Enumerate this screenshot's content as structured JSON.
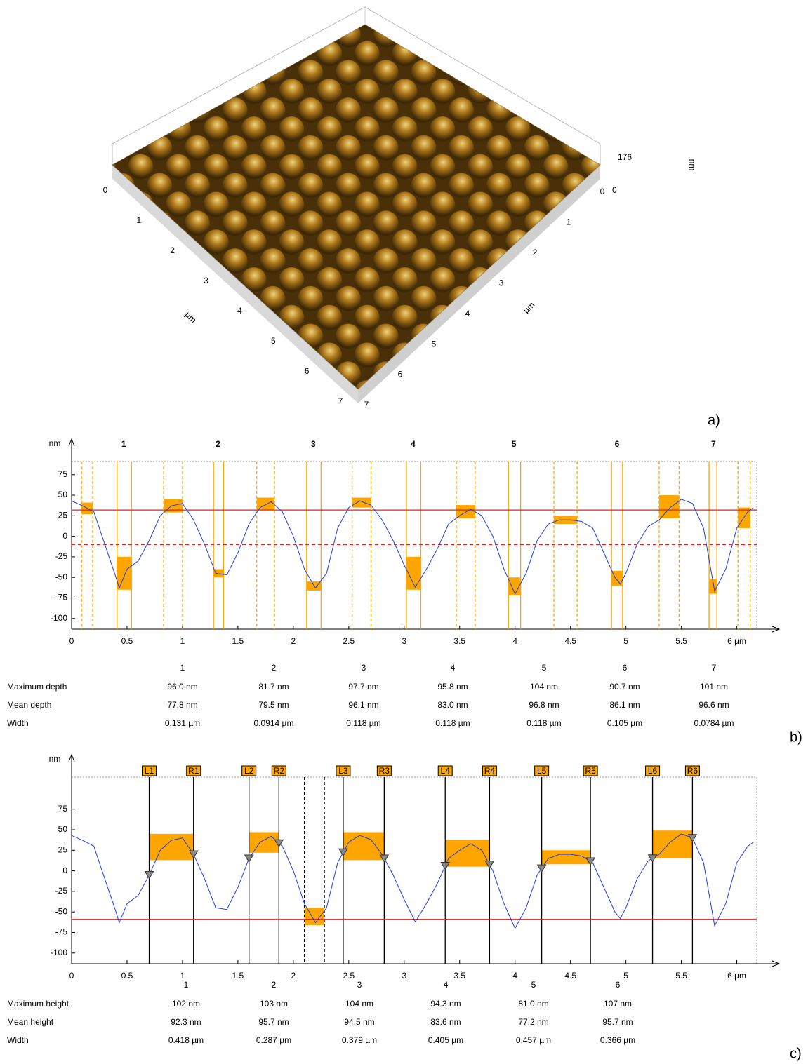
{
  "panel_a": {
    "label": "a)",
    "left_axis_ticks": [
      "0",
      "1",
      "2",
      "3",
      "4",
      "5",
      "6",
      "7"
    ],
    "left_axis_unit": "µm",
    "right_axis_ticks": [
      "0",
      "1",
      "2",
      "3",
      "4",
      "5",
      "6",
      "7"
    ],
    "right_axis_unit": "µm",
    "z_ticks": [
      "176",
      "0"
    ],
    "z_unit": "nm"
  },
  "chart_data": [
    {
      "type": "line",
      "panel_label": "b)",
      "y_unit": "nm",
      "color": "#1f3fdf",
      "x": [
        0,
        0.1,
        0.2,
        0.3,
        0.4,
        0.43,
        0.5,
        0.6,
        0.7,
        0.8,
        0.9,
        1,
        1.1,
        1.2,
        1.3,
        1.4,
        1.5,
        1.6,
        1.7,
        1.8,
        1.9,
        2,
        2.1,
        2.2,
        2.3,
        2.4,
        2.5,
        2.6,
        2.7,
        2.8,
        2.9,
        3,
        3.1,
        3.2,
        3.3,
        3.4,
        3.5,
        3.6,
        3.7,
        3.8,
        3.9,
        4,
        4.1,
        4.2,
        4.3,
        4.4,
        4.5,
        4.6,
        4.7,
        4.8,
        4.9,
        4.95,
        5,
        5.1,
        5.2,
        5.3,
        5.4,
        5.5,
        5.6,
        5.7,
        5.8,
        5.9,
        6,
        6.1,
        6.15
      ],
      "values": [
        43,
        37,
        30,
        -10,
        -50,
        -63,
        -40,
        -30,
        -5,
        25,
        37,
        40,
        20,
        -10,
        -45,
        -47,
        -20,
        15,
        35,
        42,
        30,
        0,
        -40,
        -63,
        -45,
        10,
        35,
        43,
        38,
        20,
        -5,
        -35,
        -62,
        -40,
        -15,
        15,
        25,
        33,
        25,
        0,
        -40,
        -70,
        -45,
        -5,
        15,
        20,
        20,
        18,
        10,
        -20,
        -50,
        -58,
        -45,
        -10,
        12,
        20,
        35,
        45,
        40,
        10,
        -67,
        -40,
        10,
        30,
        35
      ],
      "xlim": [
        0,
        6.18
      ],
      "ylim": [
        -113,
        91
      ],
      "xticks": [
        0,
        0.5,
        1,
        1.5,
        2,
        2.5,
        3,
        3.5,
        4,
        4.5,
        5,
        5.5,
        {
          "value": 6,
          "label": "6 µm"
        }
      ],
      "yticks": [
        75,
        50,
        25,
        0,
        -25,
        -50,
        -75,
        -100
      ],
      "hlines": [
        {
          "value": 32,
          "color": "#e02020",
          "style": "solid"
        },
        {
          "value": -10,
          "color": "#e02020",
          "style": "dashed"
        }
      ],
      "zone_fill": "#ffa500",
      "edge_color": "#ffa500",
      "edge_markers": false,
      "annotation_style": "plain",
      "zones": [
        {
          "x": [
            0.09,
            0.19
          ],
          "y": [
            27,
            41
          ],
          "edge": "dashed"
        },
        {
          "x": [
            0.83,
            1.0
          ],
          "y": [
            29,
            45
          ],
          "edge": "dashed"
        },
        {
          "x": [
            1.67,
            1.83
          ],
          "y": [
            32,
            47
          ],
          "edge": "dashed"
        },
        {
          "x": [
            2.53,
            2.7
          ],
          "y": [
            35,
            47
          ],
          "edge": "dashed"
        },
        {
          "x": [
            3.47,
            3.64
          ],
          "y": [
            22,
            38
          ],
          "edge": "dashed"
        },
        {
          "x": [
            4.35,
            4.56
          ],
          "y": [
            15,
            25
          ],
          "edge": "dashed"
        },
        {
          "x": [
            5.3,
            5.48
          ],
          "y": [
            22,
            50
          ],
          "edge": "dashed"
        },
        {
          "x": [
            6.01,
            6.12
          ],
          "y": [
            10,
            35
          ],
          "edge": "dashed"
        },
        {
          "x": [
            0.41,
            0.54
          ],
          "y": [
            -65,
            -25
          ],
          "edge": "solid"
        },
        {
          "x": [
            1.28,
            1.37
          ],
          "y": [
            -50,
            -40
          ],
          "edge": "solid"
        },
        {
          "x": [
            2.12,
            2.25
          ],
          "y": [
            -66,
            -55
          ],
          "edge": "solid"
        },
        {
          "x": [
            3.02,
            3.15
          ],
          "y": [
            -65,
            -25
          ],
          "edge": "solid"
        },
        {
          "x": [
            3.94,
            4.05
          ],
          "y": [
            -72,
            -50
          ],
          "edge": "solid"
        },
        {
          "x": [
            4.87,
            4.97
          ],
          "y": [
            -60,
            -42
          ],
          "edge": "solid"
        },
        {
          "x": [
            5.75,
            5.82
          ],
          "y": [
            -70,
            -52
          ],
          "edge": "solid"
        }
      ],
      "annotations": [
        {
          "text": "1",
          "x": 0.47
        },
        {
          "text": "2",
          "x": 1.32
        },
        {
          "text": "3",
          "x": 2.18
        },
        {
          "text": "4",
          "x": 3.08
        },
        {
          "text": "5",
          "x": 3.99
        },
        {
          "text": "6",
          "x": 4.92
        },
        {
          "text": "7",
          "x": 5.79
        }
      ],
      "table": {
        "columns": [
          "1",
          "2",
          "3",
          "4",
          "5",
          "6",
          "7"
        ],
        "rows": [
          [
            "Maximum depth",
            "96.0 nm",
            "81.7 nm",
            "97.7 nm",
            "95.8 nm",
            "104 nm",
            "90.7 nm",
            "101 nm"
          ],
          [
            "Mean depth",
            "77.8 nm",
            "79.5 nm",
            "96.1 nm",
            "83.0 nm",
            "96.8 nm",
            "86.1 nm",
            "96.6 nm"
          ],
          [
            "Width",
            "0.131 µm",
            "0.0914 µm",
            "0.118 µm",
            "0.118 µm",
            "0.118 µm",
            "0.105 µm",
            "0.0784 µm"
          ]
        ]
      }
    },
    {
      "type": "line",
      "panel_label": "c)",
      "y_unit": "nm",
      "color": "#1f3fdf",
      "x": [
        0,
        0.1,
        0.2,
        0.3,
        0.4,
        0.43,
        0.5,
        0.6,
        0.7,
        0.8,
        0.9,
        1,
        1.1,
        1.2,
        1.3,
        1.4,
        1.5,
        1.6,
        1.7,
        1.8,
        1.9,
        2,
        2.1,
        2.2,
        2.3,
        2.4,
        2.5,
        2.6,
        2.7,
        2.8,
        2.9,
        3,
        3.1,
        3.2,
        3.3,
        3.4,
        3.5,
        3.6,
        3.7,
        3.8,
        3.9,
        4,
        4.1,
        4.2,
        4.3,
        4.4,
        4.5,
        4.6,
        4.7,
        4.8,
        4.9,
        4.95,
        5,
        5.1,
        5.2,
        5.3,
        5.4,
        5.5,
        5.6,
        5.7,
        5.8,
        5.9,
        6,
        6.1,
        6.15
      ],
      "values": [
        43,
        37,
        30,
        -10,
        -50,
        -63,
        -40,
        -30,
        -5,
        25,
        37,
        40,
        20,
        -10,
        -45,
        -47,
        -20,
        15,
        35,
        42,
        30,
        0,
        -40,
        -63,
        -45,
        10,
        35,
        43,
        38,
        20,
        -5,
        -35,
        -62,
        -40,
        -15,
        15,
        25,
        33,
        25,
        0,
        -40,
        -70,
        -45,
        -5,
        15,
        20,
        20,
        18,
        10,
        -20,
        -50,
        -58,
        -45,
        -10,
        12,
        20,
        35,
        45,
        40,
        10,
        -67,
        -40,
        10,
        30,
        35
      ],
      "xlim": [
        0,
        6.18
      ],
      "ylim": [
        -113,
        114
      ],
      "xticks": [
        0,
        0.5,
        1,
        1.5,
        2,
        2.5,
        3,
        3.5,
        4,
        4.5,
        5,
        5.5,
        {
          "value": 6,
          "label": "6 µm"
        }
      ],
      "yticks": [
        75,
        50,
        25,
        0,
        -25,
        -50,
        -75,
        -100
      ],
      "hlines": [
        {
          "value": -59,
          "color": "#e02020",
          "style": "solid"
        }
      ],
      "zone_fill": "#ffa500",
      "edge_color": "#000000",
      "edge_markers": true,
      "annotation_style": "box",
      "zones": [
        {
          "x": [
            0.7,
            1.1
          ],
          "y": [
            13,
            45
          ],
          "edge": "solid"
        },
        {
          "x": [
            1.6,
            1.87
          ],
          "y": [
            22,
            47
          ],
          "edge": "solid"
        },
        {
          "x": [
            2.45,
            2.82
          ],
          "y": [
            13,
            47
          ],
          "edge": "solid"
        },
        {
          "x": [
            3.37,
            3.77
          ],
          "y": [
            5,
            38
          ],
          "edge": "solid"
        },
        {
          "x": [
            4.24,
            4.68
          ],
          "y": [
            8,
            25
          ],
          "edge": "solid"
        },
        {
          "x": [
            5.24,
            5.6
          ],
          "y": [
            15,
            49
          ],
          "edge": "solid"
        },
        {
          "x": [
            2.1,
            2.28
          ],
          "y": [
            -66,
            -45
          ],
          "edge": "dashed"
        }
      ],
      "annotations": [
        {
          "text": "L1",
          "x": 0.7
        },
        {
          "text": "R1",
          "x": 1.1
        },
        {
          "text": "L2",
          "x": 1.6
        },
        {
          "text": "R2",
          "x": 1.87
        },
        {
          "text": "L3",
          "x": 2.45
        },
        {
          "text": "R3",
          "x": 2.82
        },
        {
          "text": "L4",
          "x": 3.37
        },
        {
          "text": "R4",
          "x": 3.77
        },
        {
          "text": "L5",
          "x": 4.24
        },
        {
          "text": "R5",
          "x": 4.68
        },
        {
          "text": "L6",
          "x": 5.24
        },
        {
          "text": "R6",
          "x": 5.6
        }
      ],
      "table": {
        "columns": [
          "1",
          "2",
          "3",
          "4",
          "5",
          "6"
        ],
        "rows": [
          [
            "Maximum height",
            "102 nm",
            "103 nm",
            "104 nm",
            "94.3 nm",
            "81.0 nm",
            "107 nm"
          ],
          [
            "Mean height",
            "92.3 nm",
            "95.7 nm",
            "94.5 nm",
            "83.6 nm",
            "77.2 nm",
            "95.7 nm"
          ],
          [
            "Width",
            "0.418 µm",
            "0.287 µm",
            "0.379 µm",
            "0.405 µm",
            "0.457 µm",
            "0.366 µm"
          ]
        ]
      }
    }
  ]
}
